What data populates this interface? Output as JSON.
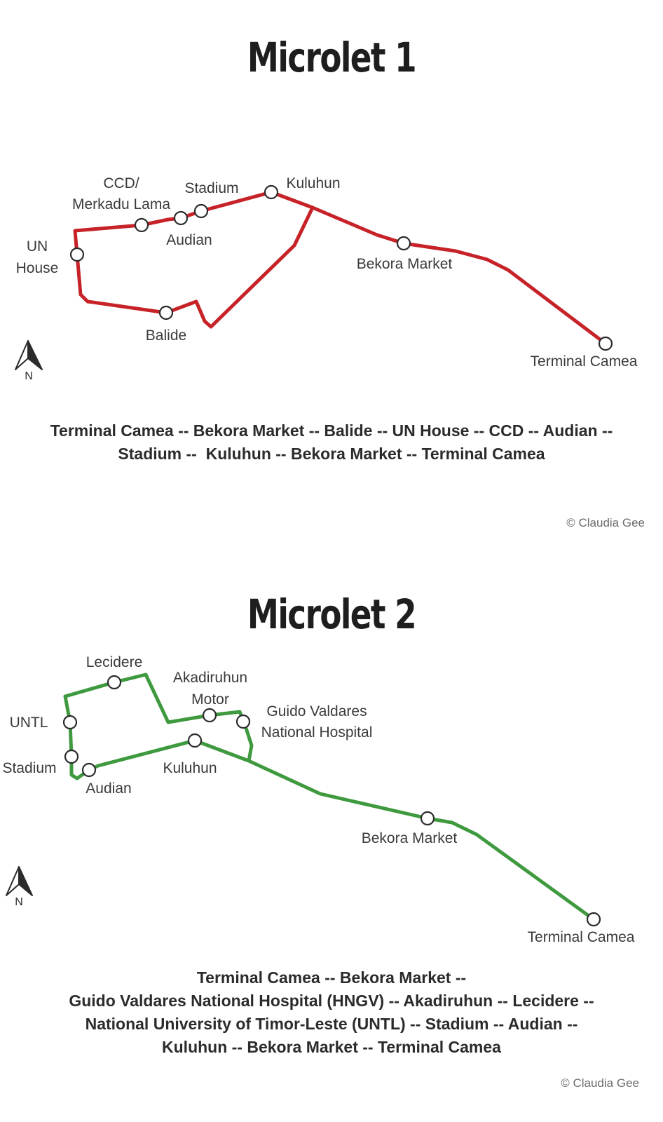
{
  "panels": [
    {
      "title": "Microlet 1",
      "route_color": "#c62228",
      "stop_labels": [
        [
          "CCD/",
          "Merkadu Lama"
        ],
        [
          "Stadium"
        ],
        [
          "Kuluhun"
        ],
        [
          "UN",
          "House"
        ],
        [
          "Audian"
        ],
        [
          "Bekora Market"
        ],
        [
          "Balide"
        ],
        [
          "Terminal Camea"
        ]
      ],
      "north_label": "N",
      "route_description": [
        "Terminal Camea -- Bekora Market -- Balide -- UN House -- CCD -- Audian --",
        "Stadium --  Kuluhun -- Bekora Market -- Terminal Camea"
      ],
      "credit": "© Claudia Gee"
    },
    {
      "title": "Microlet 2",
      "route_color": "#3f9a3f",
      "stop_labels": [
        [
          "Lecidere"
        ],
        [
          "Akadiruhun",
          "Motor"
        ],
        [
          "Guido Valdares",
          "National Hospital"
        ],
        [
          "UNTL"
        ],
        [
          "Stadium"
        ],
        [
          "Kuluhun"
        ],
        [
          "Audian"
        ],
        [
          "Bekora Market"
        ],
        [
          "Terminal Camea"
        ]
      ],
      "north_label": "N",
      "route_description": [
        "Terminal Camea -- Bekora Market --",
        "Guido Valdares National Hospital (HNGV) -- Akadiruhun -- Lecidere --",
        "National University of Timor-Leste (UNTL) -- Stadium -- Audian --",
        "Kuluhun -- Bekora Market -- Terminal Camea"
      ],
      "credit": "© Claudia Gee"
    }
  ]
}
